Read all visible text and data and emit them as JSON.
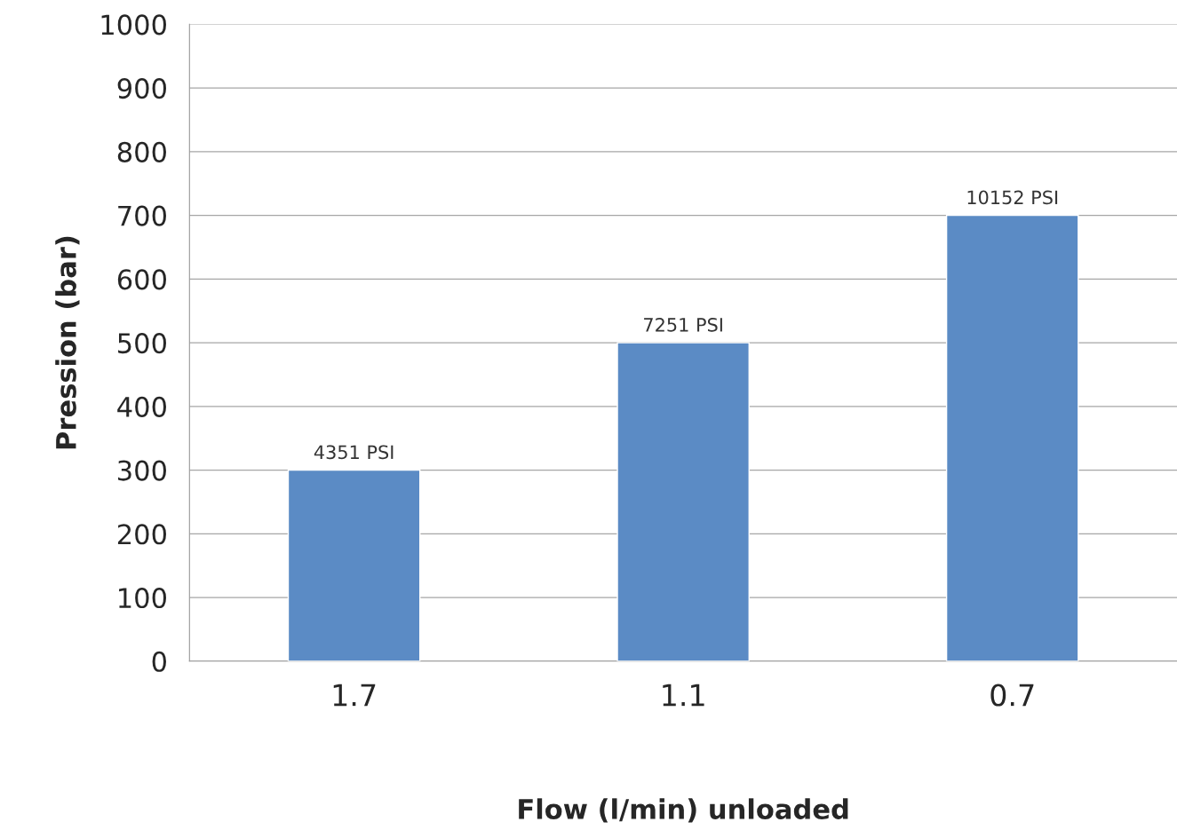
{
  "chart_data": {
    "type": "bar",
    "xlabel": "Flow (l/min) unloaded",
    "ylabel": "Pression (bar)",
    "categories": [
      "1.7",
      "1.1",
      "0.7"
    ],
    "values": [
      300,
      500,
      700
    ],
    "annotations": [
      {
        "text": "4351 PSI",
        "x": "1.7",
        "y": 300
      },
      {
        "text": "7251 PSI",
        "x": "1.1",
        "y": 500
      },
      {
        "text": "10152 PSI",
        "x": "0.7",
        "y": 700
      }
    ],
    "color": "#5b8bc5",
    "ylim": [
      0,
      1000
    ],
    "yticks": [
      0,
      100,
      200,
      300,
      400,
      500,
      600,
      700,
      800,
      900,
      1000
    ],
    "grid": "y"
  }
}
